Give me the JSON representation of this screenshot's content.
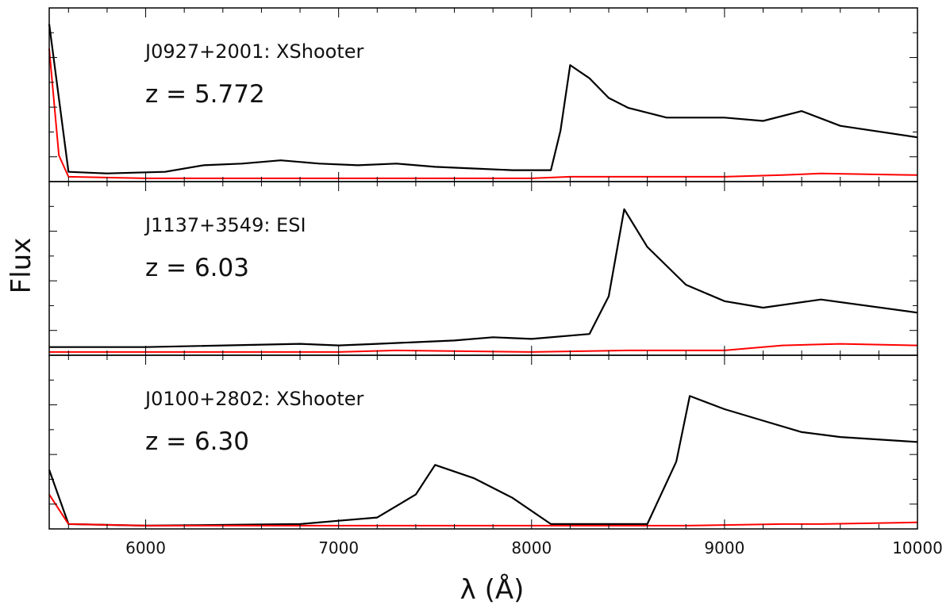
{
  "chart_data": {
    "type": "line",
    "xlabel": "λ (Å)",
    "ylabel": "Flux",
    "xlim": [
      5500,
      10000
    ],
    "x_ticks": [
      "6000",
      "7000",
      "8000",
      "9000",
      "10000"
    ],
    "grid": false,
    "colors": {
      "flux": "#000000",
      "error": "#ff0000"
    },
    "panels": [
      {
        "name": "J0927+2001: XShooter",
        "redshift_label": "z = 5.772",
        "z": 5.772,
        "ylim": [
          0,
          1.0
        ],
        "series": [
          {
            "role": "flux",
            "x": [
              5500,
              5600,
              5800,
              6100,
              6300,
              6500,
              6700,
              6900,
              7100,
              7300,
              7500,
              7700,
              7900,
              8100,
              8150,
              8200,
              8300,
              8400,
              8500,
              8700,
              9000,
              9200,
              9400,
              9600,
              10000
            ],
            "y": [
              0.95,
              0.05,
              0.04,
              0.05,
              0.09,
              0.1,
              0.12,
              0.1,
              0.09,
              0.1,
              0.08,
              0.07,
              0.06,
              0.06,
              0.3,
              0.7,
              0.62,
              0.5,
              0.44,
              0.38,
              0.38,
              0.36,
              0.42,
              0.33,
              0.26
            ]
          },
          {
            "role": "error",
            "x": [
              5500,
              5550,
              5600,
              6000,
              7000,
              8000,
              8200,
              9000,
              9300,
              9500,
              10000
            ],
            "y": [
              0.8,
              0.15,
              0.02,
              0.01,
              0.01,
              0.01,
              0.02,
              0.02,
              0.03,
              0.04,
              0.03
            ]
          }
        ]
      },
      {
        "name": "J1137+3549: ESI",
        "redshift_label": "z = 6.03",
        "z": 6.03,
        "ylim": [
          0,
          1.0
        ],
        "series": [
          {
            "role": "flux",
            "x": [
              5500,
              6000,
              6800,
              7000,
              7200,
              7400,
              7600,
              7800,
              8000,
              8300,
              8400,
              8480,
              8600,
              8800,
              9000,
              9200,
              9500,
              10000
            ],
            "y": [
              0.04,
              0.04,
              0.06,
              0.05,
              0.06,
              0.07,
              0.08,
              0.1,
              0.09,
              0.12,
              0.35,
              0.88,
              0.65,
              0.42,
              0.32,
              0.28,
              0.33,
              0.25
            ]
          },
          {
            "role": "error",
            "x": [
              5500,
              7000,
              7300,
              8000,
              8500,
              9000,
              9300,
              9600,
              10000
            ],
            "y": [
              0.01,
              0.01,
              0.02,
              0.01,
              0.02,
              0.02,
              0.05,
              0.06,
              0.05
            ]
          }
        ]
      },
      {
        "name": "J0100+2802: XShooter",
        "redshift_label": "z = 6.30",
        "z": 6.3,
        "ylim": [
          0,
          1.0
        ],
        "series": [
          {
            "role": "flux",
            "x": [
              5500,
              5600,
              6000,
              6800,
              7000,
              7200,
              7400,
              7500,
              7700,
              7900,
              8100,
              8600,
              8750,
              8820,
              9000,
              9200,
              9400,
              9600,
              10000
            ],
            "y": [
              0.35,
              0.02,
              0.01,
              0.02,
              0.04,
              0.06,
              0.2,
              0.38,
              0.3,
              0.18,
              0.02,
              0.02,
              0.4,
              0.8,
              0.72,
              0.65,
              0.58,
              0.55,
              0.52
            ]
          },
          {
            "role": "error",
            "x": [
              5500,
              5600,
              6000,
              8000,
              8800,
              9300,
              9500,
              10000
            ],
            "y": [
              0.2,
              0.02,
              0.01,
              0.01,
              0.01,
              0.02,
              0.02,
              0.03
            ]
          }
        ]
      }
    ]
  }
}
